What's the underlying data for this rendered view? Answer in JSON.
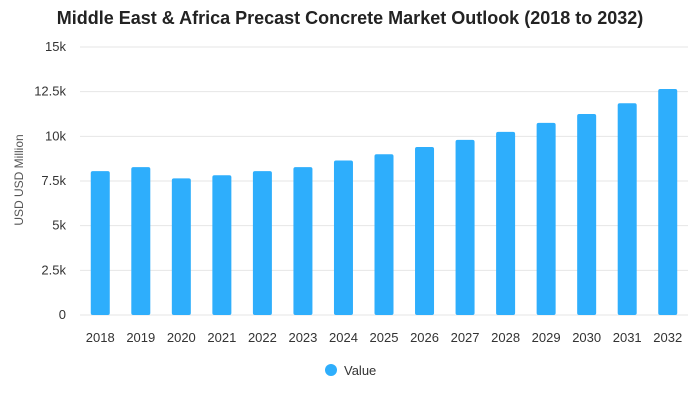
{
  "colors": {
    "bar": "#2eaefc",
    "grid": "#e6e6e6",
    "axis_text": "#333333",
    "title": "#222222"
  },
  "chart_data": {
    "type": "bar",
    "title": "Middle East & Africa Precast Concrete Market Outlook (2018 to 2032)",
    "xlabel": "",
    "ylabel": "USD USD Million",
    "ylim": [
      0,
      15000
    ],
    "yticks": [
      0,
      2500,
      5000,
      7500,
      10000,
      12500,
      15000
    ],
    "ytick_labels": [
      "0",
      "2.5k",
      "5k",
      "7.5k",
      "10k",
      "12.5k",
      "15k"
    ],
    "grid": true,
    "legend_position": "bottom-center",
    "categories": [
      "2018",
      "2019",
      "2020",
      "2021",
      "2022",
      "2023",
      "2024",
      "2025",
      "2026",
      "2027",
      "2028",
      "2029",
      "2030",
      "2031",
      "2032"
    ],
    "series": [
      {
        "name": "Value",
        "values": [
          8050,
          8280,
          7650,
          7820,
          8050,
          8280,
          8650,
          9000,
          9400,
          9800,
          10250,
          10750,
          11250,
          11850,
          12650
        ]
      }
    ]
  }
}
